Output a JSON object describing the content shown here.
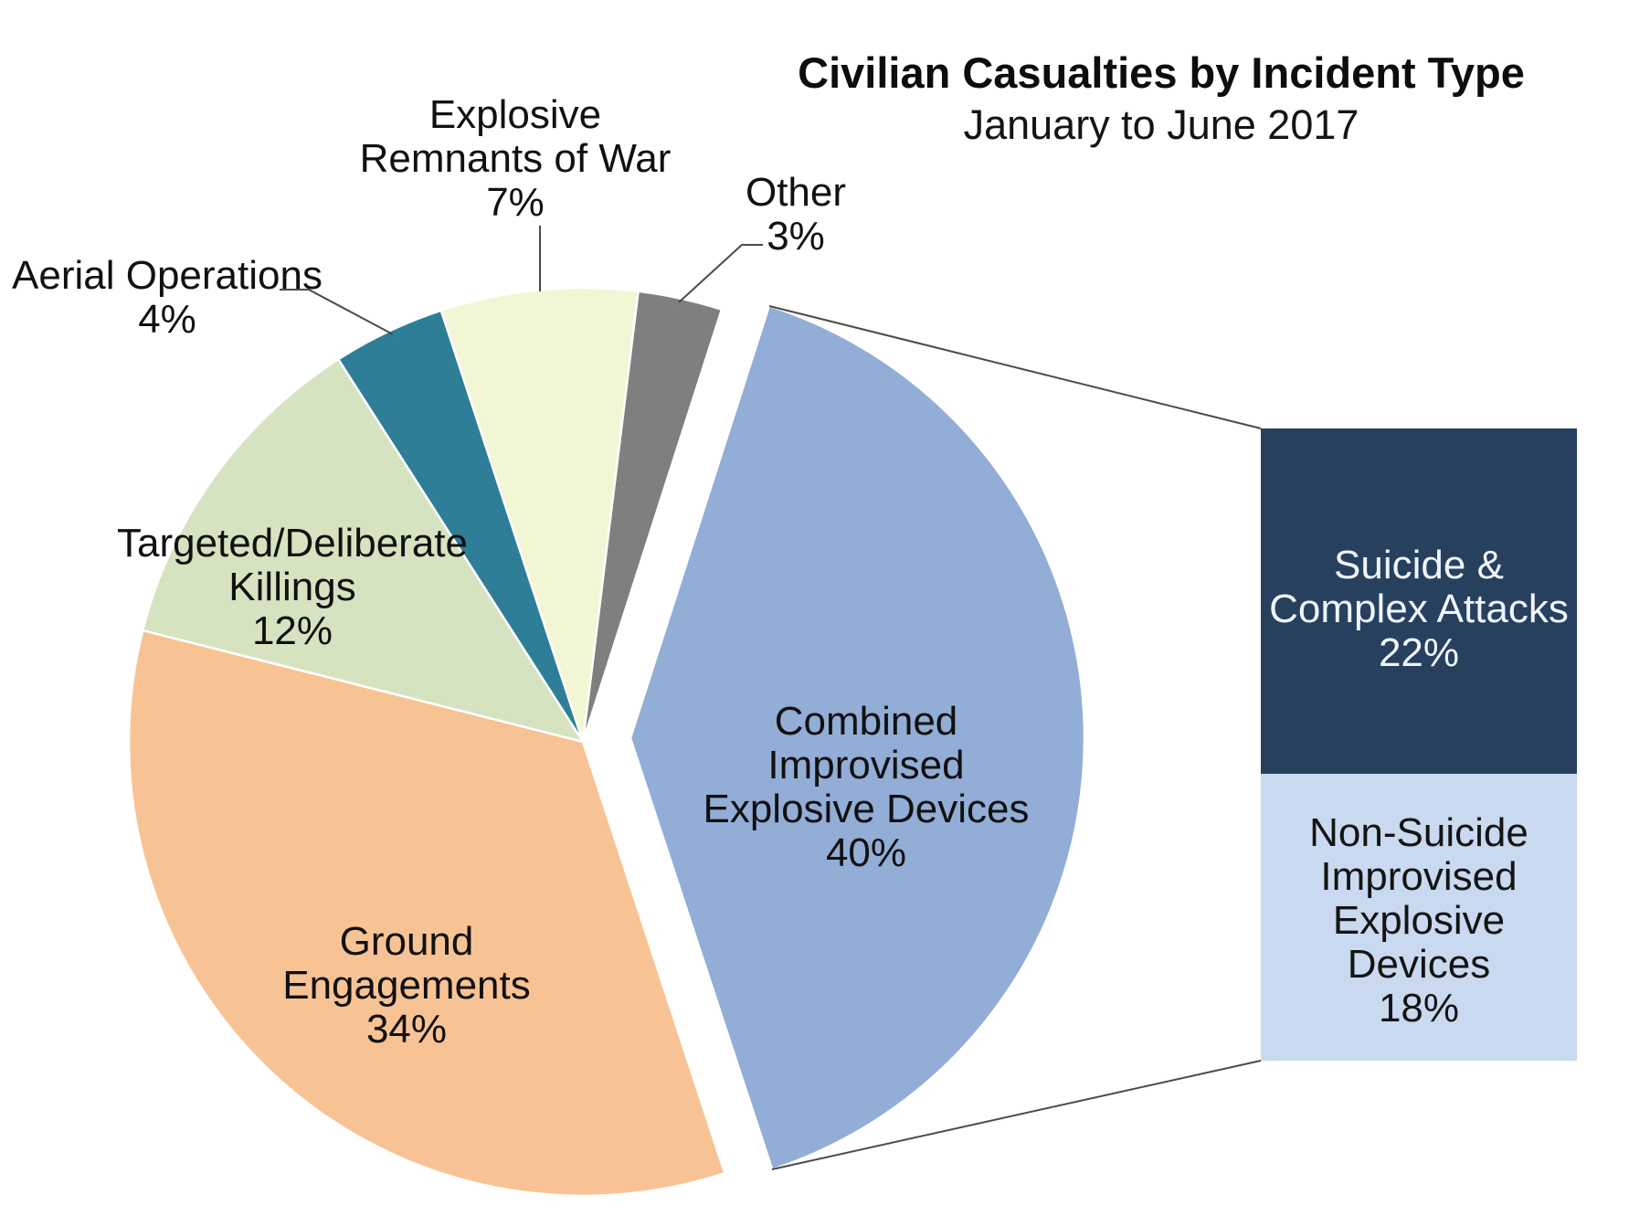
{
  "title": "Civilian Casualties by Incident Type",
  "subtitle": "January to June 2017",
  "colors": {
    "background": "#FFFFFF",
    "leader_line": "#4A4A4A",
    "label_text": "#111111",
    "slice_border": "#FFFFFF"
  },
  "chart_data": {
    "type": "pie",
    "title": "Civilian Casualties by Incident Type",
    "subtitle": "January to June 2017",
    "unit": "percent",
    "legend": "none",
    "label_format": "{label}\n{value}%",
    "total": 100,
    "slices": [
      {
        "id": "other",
        "label_lines": [
          "Other"
        ],
        "value": 3,
        "color": "#7F7F7F"
      },
      {
        "id": "erw",
        "label_lines": [
          "Explosive",
          "Remnants of War"
        ],
        "value": 7,
        "color": "#F2F6D5"
      },
      {
        "id": "aerial",
        "label_lines": [
          "Aerial Operations"
        ],
        "value": 4,
        "color": "#2F7E97"
      },
      {
        "id": "targeted",
        "label_lines": [
          "Targeted/Deliberate",
          "Killings"
        ],
        "value": 12,
        "color": "#D6E3C0"
      },
      {
        "id": "ground",
        "label_lines": [
          "Ground",
          "Engagements"
        ],
        "value": 34,
        "color": "#F8C394"
      },
      {
        "id": "cied",
        "label_lines": [
          "Combined",
          "Improvised",
          "Explosive Devices"
        ],
        "value": 40,
        "color": "#92ADD6",
        "exploded": true
      }
    ],
    "breakdown": {
      "of_slice": "cied",
      "segments": [
        {
          "id": "suicide",
          "label_lines": [
            "Suicide &",
            "Complex Attacks"
          ],
          "value": 22,
          "color": "#27405E",
          "text_color": "#EFF4FB"
        },
        {
          "id": "nonsuicide",
          "label_lines": [
            "Non-Suicide",
            "Improvised",
            "Explosive Devices"
          ],
          "value": 18,
          "color": "#C9D9F0",
          "text_color": "#141414"
        }
      ]
    }
  }
}
